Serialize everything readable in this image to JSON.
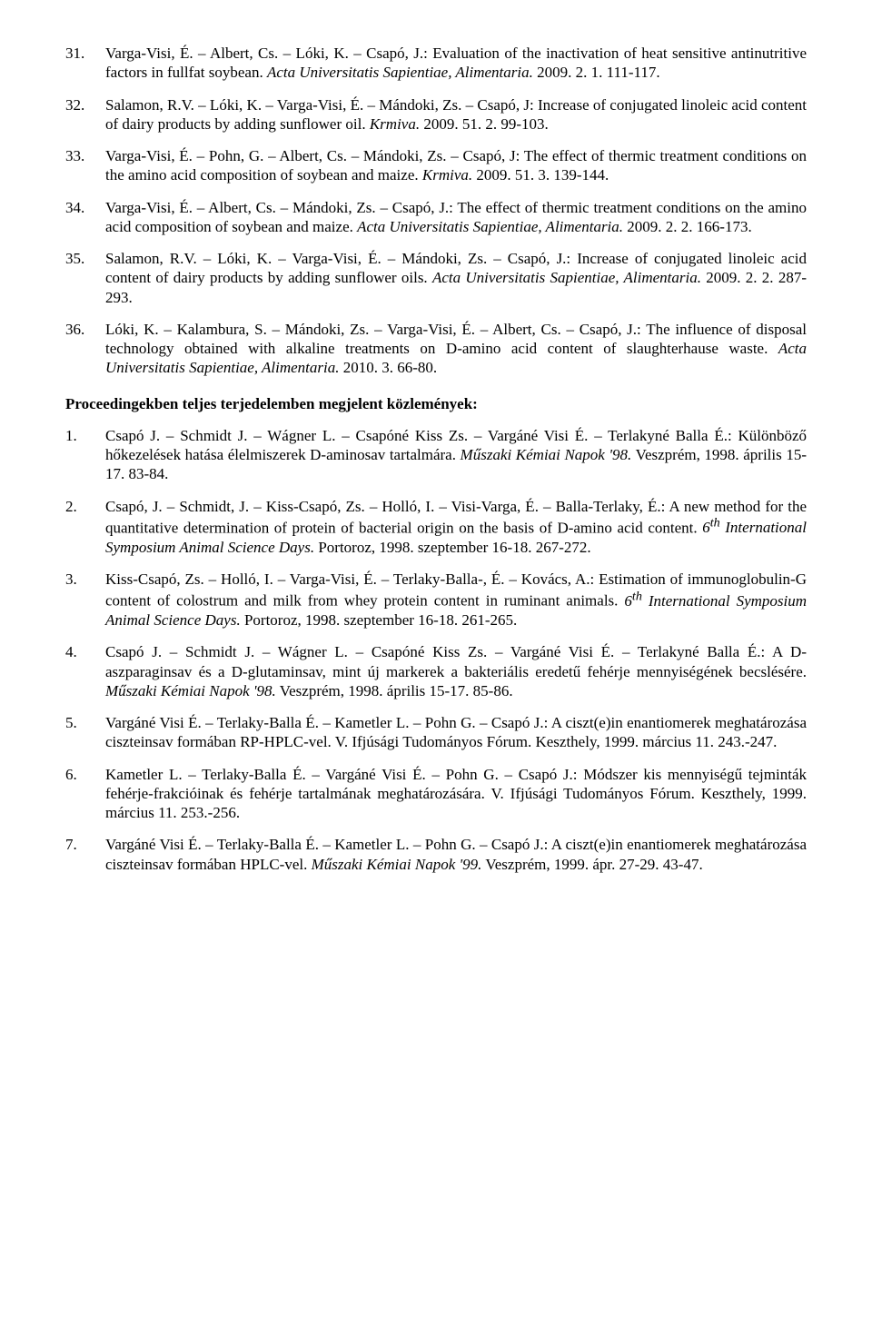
{
  "topRefs": [
    {
      "num": "31.",
      "html": "Varga-Visi, É. – Albert, Cs. – Lóki, K. – Csapó, J.: Evaluation of the inactivation of heat sensitive antinutritive factors in fullfat soybean. <i>Acta Universitatis Sapientiae, Alimentaria.</i> 2009. 2. 1. 111-117."
    },
    {
      "num": "32.",
      "html": "Salamon, R.V. – Lóki, K. – Varga-Visi, É. – Mándoki, Zs. – Csapó, J: Increase of conjugated linoleic acid content of dairy products by adding sunflower oil. <i>Krmiva.</i> 2009. 51. 2. 99-103."
    },
    {
      "num": "33.",
      "html": "Varga-Visi, É. – Pohn, G. – Albert, Cs. – Mándoki, Zs. – Csapó, J: The effect of thermic treatment conditions on the amino acid composition of soybean and maize. <i>Krmiva.</i> 2009. 51. 3. 139-144."
    },
    {
      "num": "34.",
      "html": "Varga-Visi, É. – Albert, Cs. – Mándoki, Zs. – Csapó, J.: The effect of thermic treatment conditions on the amino acid composition of soybean and maize. <i>Acta Universitatis Sapientiae, Alimentaria.</i> 2009. 2. 2. 166-173."
    },
    {
      "num": "35.",
      "html": "Salamon, R.V. – Lóki, K. – Varga-Visi, É. – Mándoki, Zs. – Csapó, J.: Increase of conjugated linoleic acid content of dairy products by adding sunflower oils. <i>Acta Universitatis Sapientiae, Alimentaria.</i> 2009. 2. 2. 287-293."
    },
    {
      "num": "36.",
      "html": "Lóki, K. – Kalambura, S. – Mándoki, Zs. – Varga-Visi, É. – Albert, Cs. – Csapó, J.: The influence of disposal technology obtained with alkaline treatments on D-amino acid content of slaughterhause waste. <i>Acta Universitatis Sapientiae, Alimentaria.</i> 2010. 3. 66-80."
    }
  ],
  "sectionHeading": "Proceedingekben teljes terjedelemben megjelent közlemények:",
  "bottomRefs": [
    {
      "num": "1.",
      "html": "Csapó J. – Schmidt J. – Wágner L. – Csapóné Kiss Zs. – Vargáné Visi É. – Terlakyné Balla É.: Különböző hőkezelések hatása élelmiszerek D-aminosav tartalmára. <i>Műszaki Kémiai Napok '98.</i> Veszprém, 1998. április 15-17. 83-84."
    },
    {
      "num": "2.",
      "html": "Csapó, J. – Schmidt, J. – Kiss-Csapó, Zs. – Holló, I. – Visi-Varga, É. – Balla-Terlaky, É.: A new method for the quantitative determination of protein of bacterial origin on the basis of D-amino acid content. <i>6<sup>th</sup> International Symposium Animal Science Days.</i> Portoroz, 1998. szeptember 16-18. 267-272."
    },
    {
      "num": "3.",
      "html": "Kiss-Csapó, Zs. – Holló, I. – Varga-Visi, É. – Terlaky-Balla-, É. – Kovács, A.: Estimation of immunoglobulin-G content of colostrum and milk from whey protein content in ruminant animals. <i>6<sup>th</sup> International Symposium Animal Science Days.</i> Portoroz, 1998. szeptember 16-18. 261-265."
    },
    {
      "num": "4.",
      "html": "Csapó J. – Schmidt J. – Wágner L. – Csapóné Kiss Zs. – Vargáné Visi É. – Terlakyné Balla É.: A D-aszparaginsav és a D-glutaminsav, mint új markerek a bakteriális eredetű fehérje mennyiségének becslésére. <i>Műszaki Kémiai Napok '98.</i> Veszprém, 1998. április 15-17. 85-86."
    },
    {
      "num": "5.",
      "html": "Vargáné Visi É. – Terlaky-Balla É. – Kametler L. – Pohn G. – Csapó J.: A ciszt(e)in enantiomerek meghatározása ciszteinsav formában RP-HPLC-vel. V. Ifjúsági Tudományos Fórum.  Keszthely, 1999. március 11. 243.-247."
    },
    {
      "num": "6.",
      "html": "Kametler L. – Terlaky-Balla É. – Vargáné Visi É. – Pohn G. – Csapó J.: Módszer kis mennyiségű tejminták fehérje-frakcióinak és fehérje tartalmának meghatározására. V. Ifjúsági Tudományos Fórum. Keszthely, 1999. március 11. 253.-256."
    },
    {
      "num": "7.",
      "html": "Vargáné Visi É. – Terlaky-Balla É. – Kametler L. – Pohn G. – Csapó J.: A ciszt(e)in enantiomerek meghatározása ciszteinsav formában HPLC-vel. <i>Műszaki Kémiai Napok '99.</i> Veszprém, 1999. ápr. 27-29. 43-47."
    }
  ]
}
